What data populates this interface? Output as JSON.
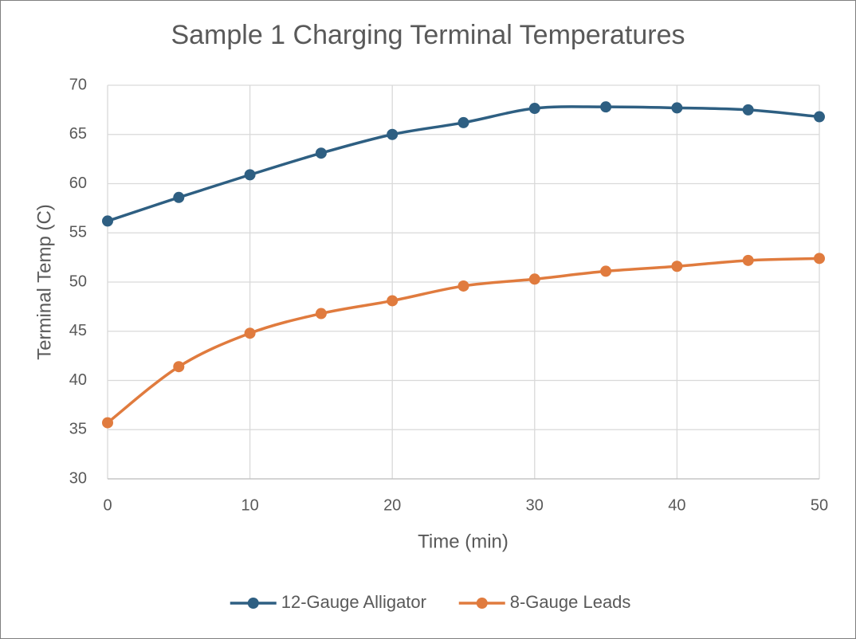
{
  "chart_data": {
    "type": "line",
    "title": "Sample 1 Charging Terminal Temperatures",
    "x_label": "Time (min)",
    "y_label": "Terminal Temp (C)",
    "x": [
      0,
      5,
      10,
      15,
      20,
      25,
      30,
      35,
      40,
      45,
      50
    ],
    "series": [
      {
        "name": "12-Gauge Alligator",
        "color": "#2e5f82",
        "values": [
          56.2,
          58.6,
          60.9,
          63.1,
          65.0,
          66.2,
          67.65,
          67.8,
          67.7,
          67.5,
          66.8
        ]
      },
      {
        "name": "8-Gauge Leads",
        "color": "#e07b3e",
        "values": [
          35.7,
          41.4,
          44.8,
          46.8,
          48.1,
          49.6,
          50.3,
          51.1,
          51.6,
          52.2,
          52.4
        ]
      }
    ],
    "xlim": [
      0,
      50
    ],
    "xticks": [
      0,
      10,
      20,
      30,
      40,
      50
    ],
    "ylim": [
      30,
      70
    ],
    "yticks": [
      30,
      35,
      40,
      45,
      50,
      55,
      60,
      65,
      70
    ],
    "grid": true,
    "legend": "bottom"
  }
}
